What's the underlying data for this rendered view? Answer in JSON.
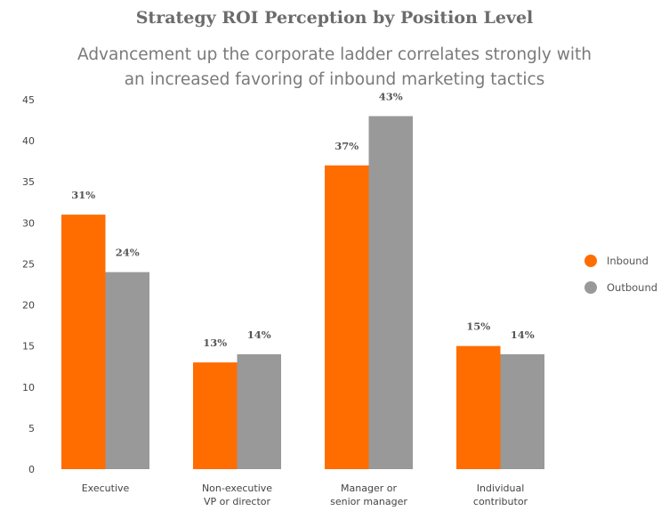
{
  "chart_data": {
    "type": "bar",
    "title": "Strategy ROI Perception by Position Level",
    "subtitle_lines": [
      "Advancement up the corporate ladder correlates strongly with",
      "an increased favoring of inbound marketing tactics"
    ],
    "xlabel": "",
    "ylabel": "",
    "ylim": [
      0,
      45
    ],
    "yticks": [
      0,
      5,
      10,
      15,
      20,
      25,
      30,
      35,
      40,
      45
    ],
    "ytick_labels": [
      "0",
      "5",
      "10",
      "15",
      "20",
      "25",
      "30",
      "35",
      "40",
      "45"
    ],
    "grid": false,
    "legend_position": "right",
    "categories": [
      [
        "Executive"
      ],
      [
        "Non-executive",
        "VP or director"
      ],
      [
        "Manager or",
        "senior manager"
      ],
      [
        "Individual",
        "contributor"
      ]
    ],
    "series": [
      {
        "name": "Inbound",
        "color": "#ff6d00",
        "values": [
          31,
          13,
          37,
          15
        ],
        "labels": [
          "31%",
          "13%",
          "37%",
          "15%"
        ]
      },
      {
        "name": "Outbound",
        "color": "#999999",
        "values": [
          24,
          14,
          43,
          14
        ],
        "labels": [
          "24%",
          "14%",
          "43%",
          "14%"
        ]
      }
    ]
  }
}
